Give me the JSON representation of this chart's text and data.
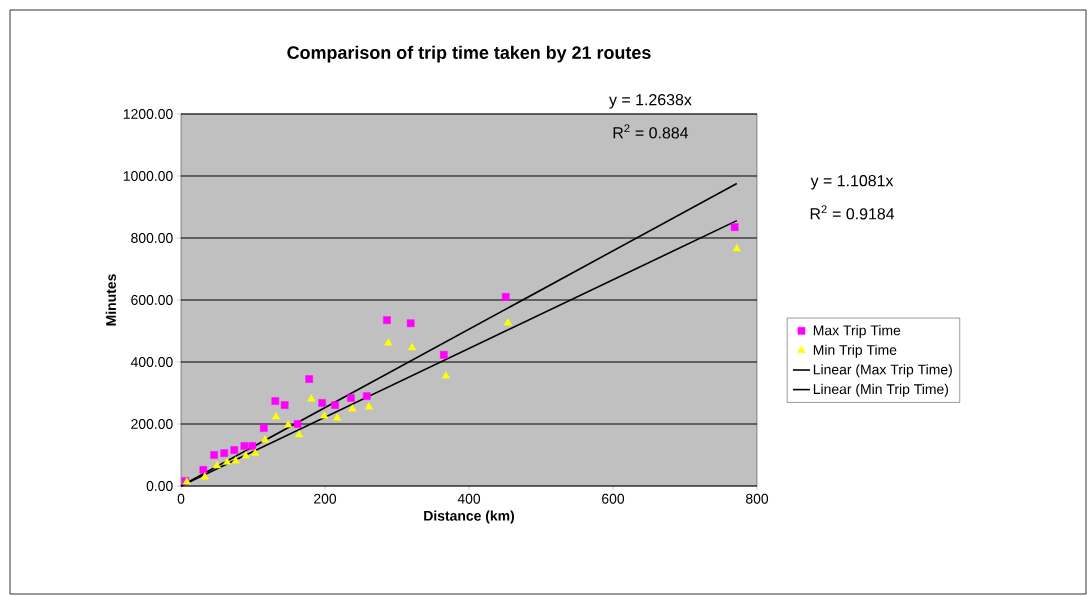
{
  "chart_data": {
    "type": "scatter",
    "title": "Comparison of trip time taken by 21 routes",
    "xlabel": "Distance (km)",
    "ylabel": "Minutes",
    "xlim": [
      0,
      800
    ],
    "xticks": [
      0,
      200,
      400,
      600,
      800
    ],
    "ylim": [
      0,
      1200
    ],
    "yticks": [
      {
        "value": 0,
        "label": "0.00"
      },
      {
        "value": 200,
        "label": "200.00"
      },
      {
        "value": 400,
        "label": "400.00"
      },
      {
        "value": 600,
        "label": "600.00"
      },
      {
        "value": 800,
        "label": "800.00"
      },
      {
        "value": 1000,
        "label": "1000.00"
      },
      {
        "value": 1200,
        "label": "1200.00"
      }
    ],
    "grid": "y",
    "legend": "right",
    "series": [
      {
        "name": "Max Trip Time",
        "marker": "square",
        "color": "#ff00ff",
        "x": [
          6,
          31,
          46,
          60,
          74,
          88,
          99,
          115,
          131,
          144,
          162,
          178,
          196,
          214,
          236,
          258,
          286,
          319,
          365,
          451,
          769
        ],
        "values": [
          16,
          52,
          100,
          106,
          116,
          129,
          129,
          187,
          274,
          261,
          200,
          345,
          268,
          261,
          284,
          290,
          535,
          525,
          423,
          610,
          835
        ]
      },
      {
        "name": "Min Trip Time",
        "marker": "triangle",
        "color": "#ffff00",
        "x": [
          8,
          33,
          50,
          64,
          76,
          90,
          103,
          117,
          132,
          149,
          164,
          181,
          199,
          217,
          238,
          261,
          288,
          321,
          368,
          454,
          772
        ],
        "values": [
          13,
          29,
          65,
          77,
          81,
          97,
          106,
          148,
          223,
          197,
          165,
          281,
          226,
          219,
          248,
          255,
          461,
          446,
          355,
          526,
          765
        ]
      },
      {
        "name": "Linear (Max Trip Time)",
        "type": "line",
        "marker": "none",
        "color": "#000000",
        "x": [
          0,
          772
        ],
        "values": [
          0,
          976
        ]
      },
      {
        "name": "Linear (Min Trip Time)",
        "type": "line",
        "marker": "none",
        "color": "#000000",
        "x": [
          0,
          772
        ],
        "values": [
          0,
          856
        ]
      }
    ],
    "annotations": [
      "y = 1.2638x",
      "R$^{2}$ = 0.884",
      "y = 1.1081x",
      "R$^{2}$ = 0.9184"
    ]
  }
}
